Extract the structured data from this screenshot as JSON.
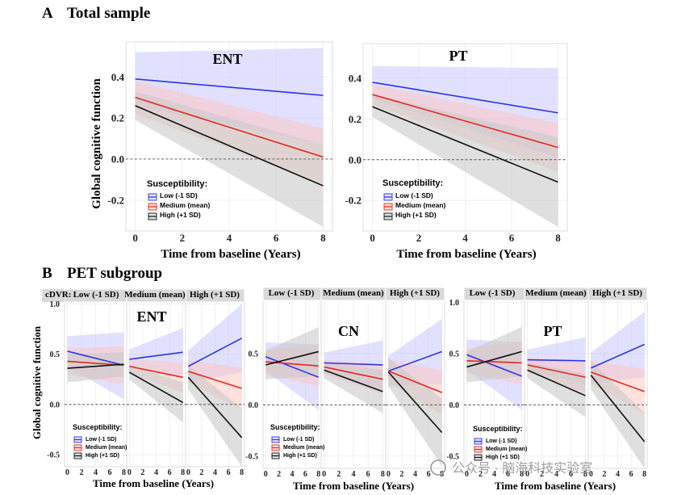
{
  "sections": {
    "a": {
      "letter": "A",
      "title": "Total sample"
    },
    "b": {
      "letter": "B",
      "title": "PET subgroup"
    }
  },
  "common": {
    "ylabel": "Global cognitive function",
    "xlabel": "Time from baseline (Years)",
    "legend_title": "Susceptibility:",
    "legend_items": [
      "Low (-1 SD)",
      "Medium (mean)",
      "High (+1 SD)"
    ],
    "facet_prefix": "cDVR:",
    "facets": [
      "Low (-1 SD)",
      "Medium (mean)",
      "High (+1 SD)"
    ],
    "colors": {
      "low": "#2a35e6",
      "medium": "#e8261f",
      "high": "#111111",
      "low_fill": "#c9c9ff",
      "medium_fill": "#ffc4bd",
      "high_fill": "#c9c9c9"
    }
  },
  "watermark": "公众号 · 脑海科技实验室",
  "chart_data": [
    {
      "id": "a_ent",
      "type": "line",
      "title": "ENT",
      "xlabel": "Time from baseline (Years)",
      "ylabel": "Global cognitive function",
      "xlim": [
        -0.4,
        8.4
      ],
      "ylim": [
        -0.35,
        0.57
      ],
      "xticks": [
        0,
        2,
        4,
        6,
        8
      ],
      "yticks": [
        -0.2,
        0.0,
        0.2,
        0.4
      ],
      "yticklabels": [
        "-0.2",
        "0.0",
        "0.2",
        "0.4"
      ],
      "series": [
        {
          "name": "Low (-1 SD)",
          "x": [
            0,
            8
          ],
          "y": [
            0.39,
            0.31
          ],
          "lower": [
            0.26,
            0.07
          ],
          "upper": [
            0.52,
            0.54
          ]
        },
        {
          "name": "Medium (mean)",
          "x": [
            0,
            8
          ],
          "y": [
            0.3,
            0.01
          ],
          "lower": [
            0.22,
            -0.12
          ],
          "upper": [
            0.38,
            0.15
          ]
        },
        {
          "name": "High (+1 SD)",
          "x": [
            0,
            8
          ],
          "y": [
            0.26,
            -0.13
          ],
          "lower": [
            0.19,
            -0.33
          ],
          "upper": [
            0.33,
            0.07
          ]
        }
      ]
    },
    {
      "id": "a_pt",
      "type": "line",
      "title": "PT",
      "xlabel": "Time from baseline (Years)",
      "xlim": [
        -0.4,
        8.4
      ],
      "ylim": [
        -0.35,
        0.57
      ],
      "xticks": [
        0,
        2,
        4,
        6,
        8
      ],
      "yticks": [
        -0.2,
        0.0,
        0.2,
        0.4
      ],
      "yticklabels": [
        "-0.2",
        "0.0",
        "0.2",
        "0.4"
      ],
      "series": [
        {
          "name": "Low (-1 SD)",
          "x": [
            0,
            8
          ],
          "y": [
            0.38,
            0.23
          ],
          "lower": [
            0.3,
            0.01
          ],
          "upper": [
            0.46,
            0.45
          ]
        },
        {
          "name": "Medium (mean)",
          "x": [
            0,
            8
          ],
          "y": [
            0.32,
            0.06
          ],
          "lower": [
            0.27,
            -0.06
          ],
          "upper": [
            0.37,
            0.18
          ]
        },
        {
          "name": "High (+1 SD)",
          "x": [
            0,
            8
          ],
          "y": [
            0.26,
            -0.11
          ],
          "lower": [
            0.21,
            -0.33
          ],
          "upper": [
            0.32,
            0.11
          ]
        }
      ]
    },
    {
      "id": "b_ent",
      "type": "line",
      "title": "ENT",
      "xlabel": "Time from baseline (Years)",
      "ylabel": "Global cognitive function",
      "xlim": [
        -0.4,
        8.4
      ],
      "ylim": [
        -0.62,
        1.02
      ],
      "xticks": [
        0,
        2,
        4,
        6,
        8
      ],
      "yticks": [
        -0.5,
        0.0,
        0.5,
        1.0
      ],
      "yticklabels": [
        "-0.5",
        "0.0",
        "0.5",
        "1.0"
      ],
      "panels": [
        {
          "facet": "Low (-1 SD)",
          "series": [
            {
              "name": "Low (-1 SD)",
              "x": [
                0,
                8
              ],
              "y": [
                0.53,
                0.39
              ],
              "lower": [
                0.38,
                0.05
              ],
              "upper": [
                0.68,
                0.72
              ]
            },
            {
              "name": "Medium (mean)",
              "x": [
                0,
                8
              ],
              "y": [
                0.43,
                0.39
              ],
              "lower": [
                0.3,
                0.2
              ],
              "upper": [
                0.56,
                0.58
              ]
            },
            {
              "name": "High (+1 SD)",
              "x": [
                0,
                8
              ],
              "y": [
                0.36,
                0.4
              ],
              "lower": [
                0.22,
                0.28
              ],
              "upper": [
                0.5,
                0.52
              ]
            }
          ]
        },
        {
          "facet": "Medium (mean)",
          "series": [
            {
              "name": "Low (-1 SD)",
              "x": [
                0,
                8
              ],
              "y": [
                0.45,
                0.52
              ],
              "lower": [
                0.35,
                0.28
              ],
              "upper": [
                0.55,
                0.76
              ]
            },
            {
              "name": "Medium (mean)",
              "x": [
                0,
                8
              ],
              "y": [
                0.38,
                0.27
              ],
              "lower": [
                0.31,
                0.12
              ],
              "upper": [
                0.45,
                0.42
              ]
            },
            {
              "name": "High (+1 SD)",
              "x": [
                0,
                8
              ],
              "y": [
                0.32,
                0.02
              ],
              "lower": [
                0.25,
                -0.18
              ],
              "upper": [
                0.39,
                0.22
              ]
            }
          ]
        },
        {
          "facet": "High (+1 SD)",
          "series": [
            {
              "name": "Low (-1 SD)",
              "x": [
                0,
                8
              ],
              "y": [
                0.38,
                0.66
              ],
              "lower": [
                0.22,
                0.32
              ],
              "upper": [
                0.54,
                1.0
              ]
            },
            {
              "name": "Medium (mean)",
              "x": [
                0,
                8
              ],
              "y": [
                0.33,
                0.16
              ],
              "lower": [
                0.22,
                -0.05
              ],
              "upper": [
                0.44,
                0.37
              ]
            },
            {
              "name": "High (+1 SD)",
              "x": [
                0,
                8
              ],
              "y": [
                0.27,
                -0.33
              ],
              "lower": [
                0.15,
                -0.62
              ],
              "upper": [
                0.39,
                -0.04
              ]
            }
          ]
        }
      ]
    },
    {
      "id": "b_cn",
      "type": "line",
      "title": "CN",
      "xlabel": "Time from baseline (Years)",
      "xlim": [
        -0.4,
        8.4
      ],
      "ylim": [
        -0.62,
        1.02
      ],
      "xticks": [
        0,
        2,
        4,
        6,
        8
      ],
      "yticks": [
        -0.5,
        0.0,
        0.5
      ],
      "yticklabels": [
        "-0.5",
        "0.0",
        "0.5"
      ],
      "panels": [
        {
          "facet": "Low (-1 SD)",
          "series": [
            {
              "name": "Low (-1 SD)",
              "x": [
                0,
                8
              ],
              "y": [
                0.47,
                0.27
              ],
              "lower": [
                0.33,
                -0.05
              ],
              "upper": [
                0.61,
                0.59
              ]
            },
            {
              "name": "Medium (mean)",
              "x": [
                0,
                8
              ],
              "y": [
                0.42,
                0.38
              ],
              "lower": [
                0.3,
                0.18
              ],
              "upper": [
                0.54,
                0.58
              ]
            },
            {
              "name": "High (+1 SD)",
              "x": [
                0,
                8
              ],
              "y": [
                0.39,
                0.52
              ],
              "lower": [
                0.25,
                0.28
              ],
              "upper": [
                0.53,
                0.76
              ]
            }
          ]
        },
        {
          "facet": "Medium (mean)",
          "series": [
            {
              "name": "Low (-1 SD)",
              "x": [
                0,
                8
              ],
              "y": [
                0.41,
                0.39
              ],
              "lower": [
                0.31,
                0.15
              ],
              "upper": [
                0.51,
                0.63
              ]
            },
            {
              "name": "Medium (mean)",
              "x": [
                0,
                8
              ],
              "y": [
                0.37,
                0.25
              ],
              "lower": [
                0.3,
                0.1
              ],
              "upper": [
                0.44,
                0.4
              ]
            },
            {
              "name": "High (+1 SD)",
              "x": [
                0,
                8
              ],
              "y": [
                0.34,
                0.13
              ],
              "lower": [
                0.26,
                -0.08
              ],
              "upper": [
                0.42,
                0.34
              ]
            }
          ]
        },
        {
          "facet": "High (+1 SD)",
          "series": [
            {
              "name": "Low (-1 SD)",
              "x": [
                0,
                8
              ],
              "y": [
                0.33,
                0.52
              ],
              "lower": [
                0.18,
                0.2
              ],
              "upper": [
                0.48,
                0.84
              ]
            },
            {
              "name": "Medium (mean)",
              "x": [
                0,
                8
              ],
              "y": [
                0.33,
                0.12
              ],
              "lower": [
                0.22,
                -0.1
              ],
              "upper": [
                0.44,
                0.34
              ]
            },
            {
              "name": "High (+1 SD)",
              "x": [
                0,
                8
              ],
              "y": [
                0.32,
                -0.27
              ],
              "lower": [
                0.18,
                -0.6
              ],
              "upper": [
                0.46,
                0.06
              ]
            }
          ]
        }
      ]
    },
    {
      "id": "b_pt",
      "type": "line",
      "title": "PT",
      "xlabel": "Time from baseline (Years)",
      "xlim": [
        -0.4,
        8.4
      ],
      "ylim": [
        -0.62,
        1.02
      ],
      "xticks": [
        0,
        2,
        4,
        6,
        8
      ],
      "yticks": [
        -0.5,
        0.0,
        0.5,
        1.0
      ],
      "yticklabels": [
        "-0.5",
        "0.0",
        "0.5",
        "1.0"
      ],
      "panels": [
        {
          "facet": "Low (-1 SD)",
          "series": [
            {
              "name": "Low (-1 SD)",
              "x": [
                0,
                8
              ],
              "y": [
                0.49,
                0.28
              ],
              "lower": [
                0.34,
                -0.05
              ],
              "upper": [
                0.64,
                0.61
              ]
            },
            {
              "name": "Medium (mean)",
              "x": [
                0,
                8
              ],
              "y": [
                0.43,
                0.41
              ],
              "lower": [
                0.31,
                0.2
              ],
              "upper": [
                0.55,
                0.62
              ]
            },
            {
              "name": "High (+1 SD)",
              "x": [
                0,
                8
              ],
              "y": [
                0.37,
                0.52
              ],
              "lower": [
                0.22,
                0.28
              ],
              "upper": [
                0.52,
                0.76
              ]
            }
          ]
        },
        {
          "facet": "Medium (mean)",
          "series": [
            {
              "name": "Low (-1 SD)",
              "x": [
                0,
                8
              ],
              "y": [
                0.44,
                0.43
              ],
              "lower": [
                0.34,
                0.2
              ],
              "upper": [
                0.54,
                0.66
              ]
            },
            {
              "name": "Medium (mean)",
              "x": [
                0,
                8
              ],
              "y": [
                0.39,
                0.27
              ],
              "lower": [
                0.32,
                0.12
              ],
              "upper": [
                0.46,
                0.42
              ]
            },
            {
              "name": "High (+1 SD)",
              "x": [
                0,
                8
              ],
              "y": [
                0.34,
                0.09
              ],
              "lower": [
                0.26,
                -0.12
              ],
              "upper": [
                0.42,
                0.3
              ]
            }
          ]
        },
        {
          "facet": "High (+1 SD)",
          "series": [
            {
              "name": "Low (-1 SD)",
              "x": [
                0,
                8
              ],
              "y": [
                0.36,
                0.59
              ],
              "lower": [
                0.21,
                0.27
              ],
              "upper": [
                0.51,
                0.91
              ]
            },
            {
              "name": "Medium (mean)",
              "x": [
                0,
                8
              ],
              "y": [
                0.32,
                0.13
              ],
              "lower": [
                0.21,
                -0.09
              ],
              "upper": [
                0.43,
                0.35
              ]
            },
            {
              "name": "High (+1 SD)",
              "x": [
                0,
                8
              ],
              "y": [
                0.29,
                -0.36
              ],
              "lower": [
                0.15,
                -0.62
              ],
              "upper": [
                0.43,
                -0.08
              ]
            }
          ]
        }
      ]
    }
  ]
}
